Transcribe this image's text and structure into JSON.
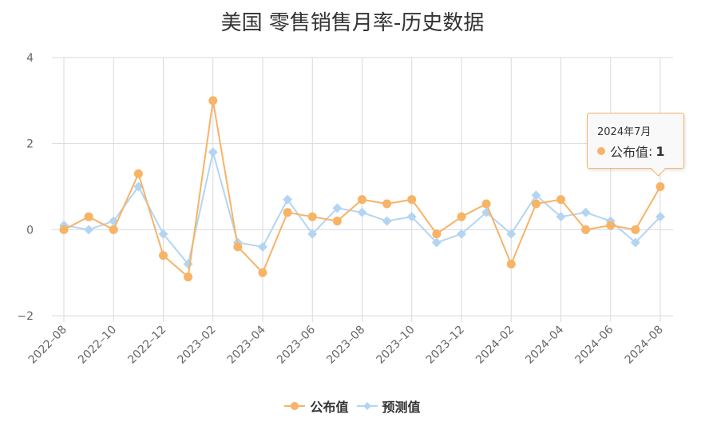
{
  "title": "美国 零售销售月率-历史数据",
  "colors": {
    "published": "#f7b366",
    "forecast": "#b3d5f2",
    "grid": "#d9d9e1",
    "axis_text": "#666666"
  },
  "legend": {
    "items": [
      {
        "label": "公布值",
        "series": "published",
        "marker": "circle"
      },
      {
        "label": "预测值",
        "series": "forecast",
        "marker": "diamond"
      }
    ]
  },
  "tooltip": {
    "date": "2024年7月",
    "series_label": "公布值",
    "separator": ":",
    "value": "1"
  },
  "chart_data": {
    "type": "line",
    "title": "美国 零售销售月率-历史数据",
    "xlabel": "",
    "ylabel": "",
    "ylim": [
      -2,
      4
    ],
    "yticks": [
      4,
      2,
      0,
      -2
    ],
    "ytick_labels": [
      "4",
      "2",
      "0",
      "−2"
    ],
    "grid": true,
    "legend_position": "bottom",
    "x": [
      "2022-08",
      "2022-09",
      "2022-10",
      "2022-11",
      "2022-12",
      "2023-01",
      "2023-02",
      "2023-03",
      "2023-04",
      "2023-05",
      "2023-06",
      "2023-07",
      "2023-08",
      "2023-09",
      "2023-10",
      "2023-11",
      "2023-12",
      "2024-01",
      "2024-02",
      "2024-03",
      "2024-04",
      "2024-05",
      "2024-06",
      "2024-07",
      "2024-08"
    ],
    "xtick_labels": [
      "2022–08",
      "2022–10",
      "2022–12",
      "2023–02",
      "2023–04",
      "2023–06",
      "2023–08",
      "2023–10",
      "2023–12",
      "2024–02",
      "2024–04",
      "2024–06",
      "2024–08"
    ],
    "series": [
      {
        "name": "公布值",
        "values": [
          0.0,
          0.3,
          0.0,
          1.3,
          -0.6,
          -1.1,
          3.0,
          -0.4,
          -1.0,
          0.4,
          0.3,
          0.2,
          0.7,
          0.6,
          0.7,
          -0.1,
          0.3,
          0.6,
          -0.8,
          0.6,
          0.7,
          0.0,
          0.1,
          0.0,
          1.0
        ]
      },
      {
        "name": "预测值",
        "values": [
          0.1,
          0.0,
          0.2,
          1.0,
          -0.1,
          -0.8,
          1.8,
          -0.3,
          -0.4,
          0.7,
          -0.1,
          0.5,
          0.4,
          0.2,
          0.3,
          -0.3,
          -0.1,
          0.4,
          -0.1,
          0.8,
          0.3,
          0.4,
          0.2,
          -0.3,
          0.3
        ]
      }
    ],
    "annotations": [
      {
        "type": "tooltip",
        "x": "2024-08",
        "text": "2024年7月 公布值: 1"
      }
    ]
  }
}
